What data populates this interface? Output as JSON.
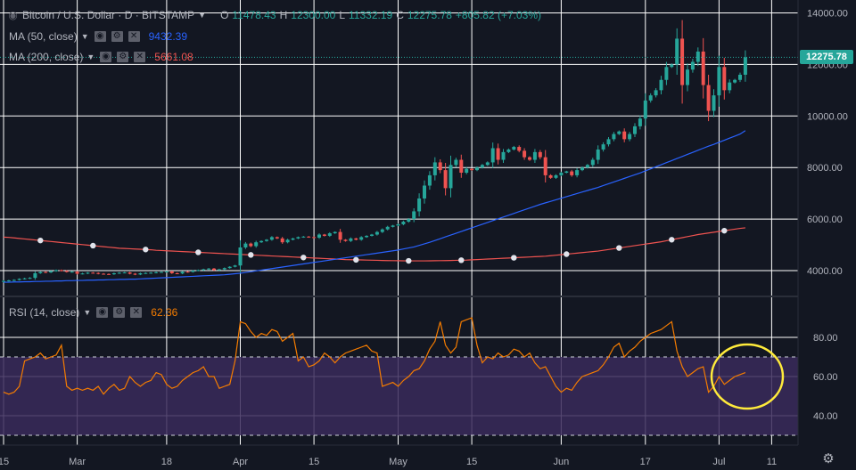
{
  "header": {
    "symbol_title": "Bitcoin / U.S. Dollar · D · BITSTAMP",
    "ohlc": {
      "o_label": "O",
      "o_value": "11478.43",
      "h_label": "H",
      "h_value": "12300.00",
      "l_label": "L",
      "l_value": "11332.19",
      "c_label": "C",
      "c_value": "12275.78",
      "change": "+805.82 (+7.03%)"
    }
  },
  "indicators": {
    "ma50": {
      "label": "MA (50, close)",
      "value": "9432.39",
      "color": "#2962ff"
    },
    "ma200": {
      "label": "MA (200, close)",
      "value": "5661.08",
      "color": "#ef5350"
    },
    "rsi": {
      "label": "RSI (14, close)",
      "value": "62.36",
      "color": "#f57c00"
    }
  },
  "last_price": "12275.78",
  "colors": {
    "background": "#131722",
    "up": "#26a69a",
    "down": "#ef5350",
    "rsi_band": "#3a2a5a",
    "highlight_circle": "#ffeb3b",
    "grid": "#ffffff"
  },
  "icons": [
    "eye-icon",
    "gear-icon",
    "close-icon",
    "chevron-down-icon",
    "settings-gear-icon"
  ],
  "chart_data": [
    {
      "type": "candlestick",
      "y_ticks": [
        "14000.00",
        "12000.00",
        "10000.00",
        "8000.00",
        "6000.00",
        "4000.00"
      ],
      "ylim": [
        3000,
        14500
      ],
      "x_ticks": [
        "15",
        "Mar",
        "18",
        "Apr",
        "15",
        "May",
        "15",
        "Jun",
        "17",
        "Jul",
        "11"
      ],
      "x_tick_days": [
        0,
        14,
        31,
        45,
        59,
        75,
        89,
        106,
        122,
        136,
        146
      ],
      "close": [
        3600,
        3620,
        3640,
        3680,
        3700,
        3720,
        3900,
        3950,
        3930,
        3980,
        4020,
        3990,
        3950,
        3960,
        3880,
        3890,
        3920,
        3910,
        3880,
        3870,
        3860,
        3900,
        3920,
        3930,
        3880,
        3850,
        3900,
        3910,
        3920,
        3940,
        3950,
        3970,
        3900,
        3890,
        3960,
        3950,
        4000,
        4020,
        4050,
        4080,
        4020,
        4050,
        4100,
        4150,
        4200,
        4900,
        5050,
        4950,
        5100,
        5150,
        5200,
        5300,
        5250,
        5100,
        5200,
        5250,
        5300,
        5320,
        5300,
        5280,
        5400,
        5350,
        5450,
        5500,
        5200,
        5150,
        5250,
        5200,
        5300,
        5350,
        5400,
        5500,
        5600,
        5700,
        5750,
        5800,
        5900,
        6000,
        6300,
        6800,
        7300,
        7700,
        8200,
        7900,
        7200,
        8100,
        8300,
        7800,
        7950,
        7900,
        8000,
        8100,
        8200,
        8750,
        8300,
        8600,
        8700,
        8800,
        8650,
        8400,
        8300,
        8600,
        8400,
        7700,
        7600,
        7700,
        7800,
        7850,
        7700,
        7900,
        8000,
        8100,
        8300,
        8700,
        8900,
        9100,
        9300,
        9400,
        9100,
        9300,
        9600,
        9900,
        10600,
        10800,
        11000,
        11400,
        11900,
        12000,
        13000,
        11200,
        11800,
        12100,
        12500,
        11200,
        10200,
        10800,
        11900,
        11000,
        11300,
        11400,
        11600,
        12276
      ],
      "ma200": [
        5300,
        5290,
        5270,
        5250,
        5230,
        5210,
        5190,
        5170,
        5150,
        5130,
        5110,
        5090,
        5070,
        5050,
        5030,
        5010,
        4990,
        4970,
        4950,
        4930,
        4910,
        4890,
        4870,
        4860,
        4850,
        4840,
        4830,
        4820,
        4810,
        4790,
        4780,
        4770,
        4760,
        4750,
        4740,
        4730,
        4720,
        4710,
        4700,
        4690,
        4680,
        4670,
        4660,
        4650,
        4640,
        4630,
        4620,
        4610,
        4600,
        4590,
        4580,
        4570,
        4560,
        4550,
        4540,
        4530,
        4520,
        4510,
        4500,
        4490,
        4480,
        4470,
        4460,
        4450,
        4440,
        4430,
        4425,
        4420,
        4415,
        4410,
        4405,
        4400,
        4395,
        4390,
        4388,
        4385,
        4382,
        4380,
        4380,
        4380,
        4380,
        4382,
        4385,
        4388,
        4390,
        4395,
        4400,
        4405,
        4410,
        4420,
        4430,
        4440,
        4450,
        4460,
        4470,
        4480,
        4490,
        4500,
        4510,
        4520,
        4530,
        4540,
        4550,
        4560,
        4580,
        4600,
        4620,
        4640,
        4660,
        4680,
        4700,
        4720,
        4740,
        4760,
        4790,
        4820,
        4850,
        4880,
        4910,
        4940,
        4970,
        5000,
        5030,
        5060,
        5090,
        5120,
        5160,
        5200,
        5240,
        5280,
        5320,
        5360,
        5400,
        5430,
        5460,
        5490,
        5520,
        5550,
        5580,
        5610,
        5640,
        5661
      ],
      "ma50": [
        3550,
        3550,
        3560,
        3560,
        3570,
        3570,
        3580,
        3580,
        3590,
        3590,
        3600,
        3600,
        3610,
        3610,
        3620,
        3620,
        3630,
        3630,
        3640,
        3640,
        3650,
        3650,
        3660,
        3660,
        3670,
        3670,
        3680,
        3690,
        3700,
        3710,
        3720,
        3730,
        3740,
        3750,
        3760,
        3770,
        3780,
        3790,
        3800,
        3810,
        3820,
        3830,
        3840,
        3860,
        3880,
        3900,
        3930,
        3960,
        3990,
        4020,
        4050,
        4080,
        4110,
        4140,
        4170,
        4200,
        4230,
        4260,
        4290,
        4320,
        4350,
        4380,
        4410,
        4440,
        4470,
        4500,
        4530,
        4560,
        4590,
        4620,
        4650,
        4680,
        4710,
        4740,
        4770,
        4800,
        4840,
        4880,
        4920,
        4980,
        5040,
        5100,
        5170,
        5240,
        5310,
        5380,
        5450,
        5520,
        5590,
        5660,
        5730,
        5800,
        5870,
        5940,
        6010,
        6080,
        6150,
        6220,
        6290,
        6360,
        6430,
        6500,
        6570,
        6630,
        6690,
        6750,
        6810,
        6870,
        6930,
        6990,
        7050,
        7110,
        7170,
        7230,
        7300,
        7370,
        7440,
        7510,
        7580,
        7650,
        7720,
        7790,
        7870,
        7950,
        8030,
        8110,
        8190,
        8270,
        8350,
        8430,
        8510,
        8590,
        8670,
        8750,
        8830,
        8900,
        8980,
        9060,
        9140,
        9220,
        9300,
        9432
      ]
    },
    {
      "type": "line",
      "ylim": [
        25,
        100
      ],
      "y_ticks": [
        "80.00",
        "60.00",
        "40.00"
      ],
      "bands": [
        30,
        70
      ],
      "rsi": [
        52,
        51,
        52,
        55,
        68,
        69,
        70,
        72,
        69,
        70,
        71,
        76,
        55,
        53,
        54,
        53,
        54,
        53,
        55,
        51,
        54,
        56,
        53,
        54,
        60,
        57,
        55,
        57,
        58,
        62,
        61,
        56,
        54,
        55,
        58,
        60,
        62,
        63,
        65,
        60,
        60,
        54,
        55,
        56,
        68,
        88,
        87,
        83,
        80,
        82,
        81,
        84,
        83,
        78,
        80,
        82,
        68,
        70,
        65,
        66,
        68,
        72,
        70,
        67,
        70,
        72,
        73,
        74,
        75,
        76,
        73,
        72,
        55,
        56,
        57,
        55,
        58,
        60,
        63,
        64,
        68,
        74,
        78,
        88,
        76,
        72,
        75,
        88,
        89,
        90,
        76,
        67,
        70,
        69,
        72,
        70,
        71,
        74,
        73,
        70,
        72,
        67,
        64,
        65,
        60,
        55,
        52,
        54,
        53,
        57,
        60,
        61,
        62,
        63,
        66,
        70,
        75,
        77,
        70,
        73,
        75,
        78,
        80,
        82,
        83,
        84,
        86,
        88,
        73,
        65,
        60,
        62,
        64,
        65,
        52,
        55,
        60,
        56,
        58,
        60,
        61,
        62
      ]
    }
  ]
}
